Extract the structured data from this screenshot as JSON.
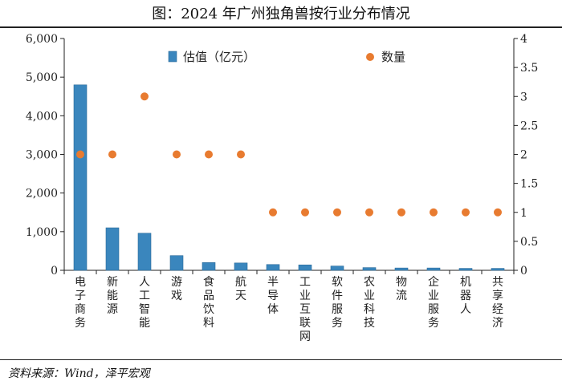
{
  "title": "图：2024 年广州独角兽按行业分布情况",
  "source": "资料来源：Wind，泽平宏观",
  "colors": {
    "bar": "#3a86bd",
    "bar_edge": "#2a6a99",
    "dot": "#e87b30",
    "axis": "#222222"
  },
  "chart_data": {
    "type": "bar",
    "categories": [
      "电子商务",
      "新能源",
      "人工智能",
      "游戏",
      "食品饮料",
      "航天",
      "半导体",
      "工业互联网",
      "软件服务",
      "农业科技",
      "物流",
      "企业服务",
      "机器人",
      "共享经济"
    ],
    "series": [
      {
        "name": "估值（亿元）",
        "type": "bar",
        "axis": "left",
        "values": [
          4800,
          1100,
          960,
          380,
          200,
          190,
          150,
          140,
          110,
          70,
          60,
          60,
          50,
          50
        ]
      },
      {
        "name": "数量",
        "type": "scatter",
        "axis": "right",
        "values": [
          2,
          2,
          3,
          2,
          2,
          2,
          1,
          1,
          1,
          1,
          1,
          1,
          1,
          1
        ]
      }
    ],
    "ylim_left": [
      0,
      6000
    ],
    "yticks_left": [
      "0",
      "1,000",
      "2,000",
      "3,000",
      "4,000",
      "5,000",
      "6,000"
    ],
    "ylim_right": [
      0,
      4
    ],
    "yticks_right": [
      "0",
      "0.5",
      "1",
      "1.5",
      "2",
      "2.5",
      "3",
      "3.5",
      "4"
    ],
    "legend_position": "top",
    "grid": false
  }
}
